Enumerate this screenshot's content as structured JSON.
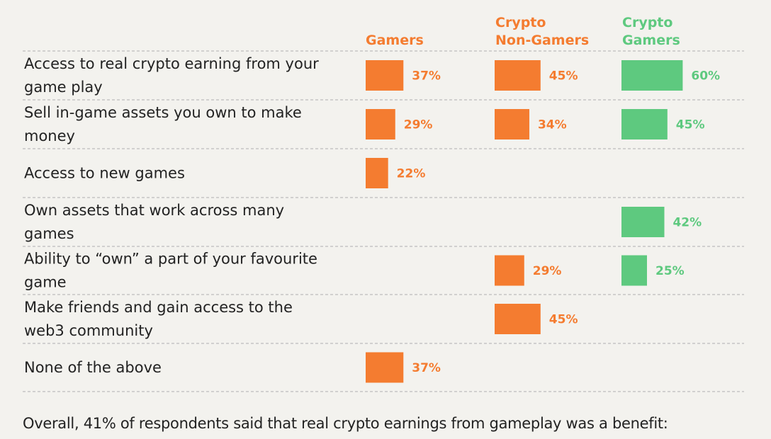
{
  "colors": {
    "gamers": "#f47c30",
    "crypto_non_gamers": "#f47c30",
    "crypto_gamers": "#5ec97f",
    "text": "#222222",
    "divider": "#bdbdbd",
    "background": "#f3f2ee"
  },
  "chart_data": {
    "type": "bar",
    "orientation": "horizontal",
    "title": "",
    "xlabel": "",
    "ylabel": "",
    "grid": false,
    "legend": "column headers",
    "categories": [
      [
        "Access to real crypto earning  from your",
        "game play"
      ],
      [
        "Sell in-game assets you own to make",
        "money"
      ],
      [
        "Access to new games"
      ],
      [
        "Own assets that work across many",
        "games"
      ],
      [
        "Ability to “own” a part of your favourite",
        "game"
      ],
      [
        "Make friends and gain access to the",
        "web3 community"
      ],
      [
        "None of the above"
      ]
    ],
    "series": [
      {
        "name": [
          "Gamers"
        ],
        "color_key": "gamers",
        "values": [
          37,
          29,
          22,
          null,
          null,
          null,
          37
        ],
        "labels": [
          "37%",
          "29%",
          "22%",
          "",
          "",
          "",
          "37%"
        ]
      },
      {
        "name": [
          "Crypto",
          "Non-Gamers"
        ],
        "color_key": "crypto_non_gamers",
        "values": [
          45,
          34,
          null,
          null,
          29,
          45,
          null
        ],
        "labels": [
          "45%",
          "34%",
          "",
          "",
          "29%",
          "45%",
          ""
        ]
      },
      {
        "name": [
          "Crypto",
          "Gamers"
        ],
        "color_key": "crypto_gamers",
        "values": [
          60,
          45,
          null,
          42,
          25,
          null,
          null
        ],
        "labels": [
          "60%",
          "45%",
          "",
          "42%",
          "25%",
          "",
          ""
        ]
      }
    ]
  },
  "footer": {
    "text": "Overall, 41% of respondents said that real crypto earnings from gameplay was a benefit:"
  }
}
